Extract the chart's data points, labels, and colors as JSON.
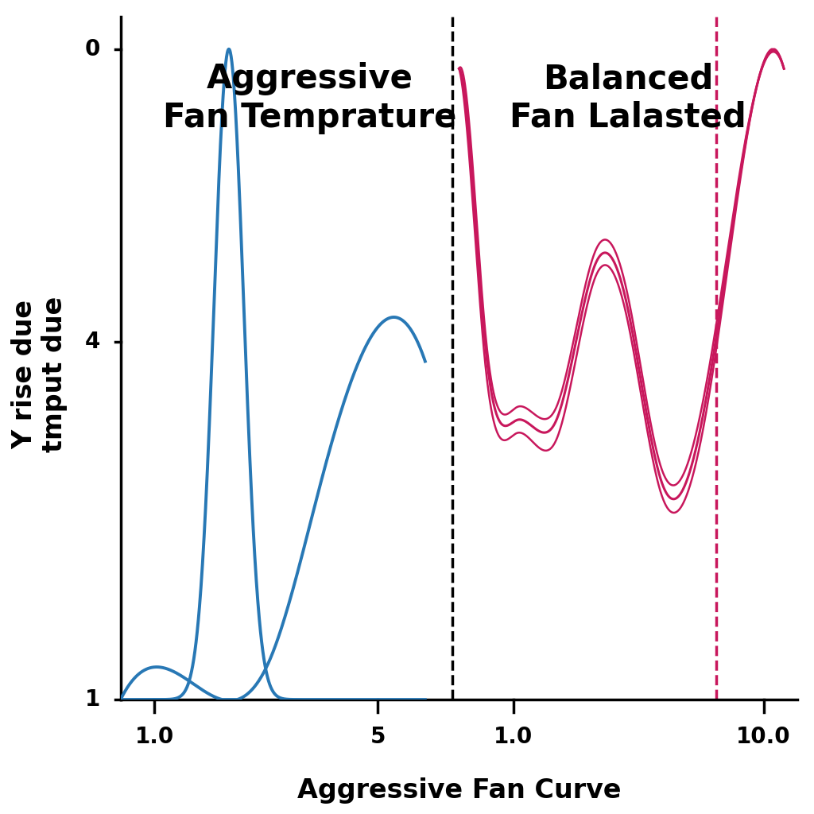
{
  "title_left": "Aggressive\nFan Temprature",
  "title_right": "Balanced\nFan Lalasted",
  "xlabel": "Aggressive Fan Curve",
  "ylabel": "Y rise due\ntmput due",
  "blue_color": "#2878b5",
  "pink_color": "#c8175c",
  "background_color": "#ffffff",
  "title_fontsize": 30,
  "label_fontsize": 24,
  "tick_fontsize": 20
}
